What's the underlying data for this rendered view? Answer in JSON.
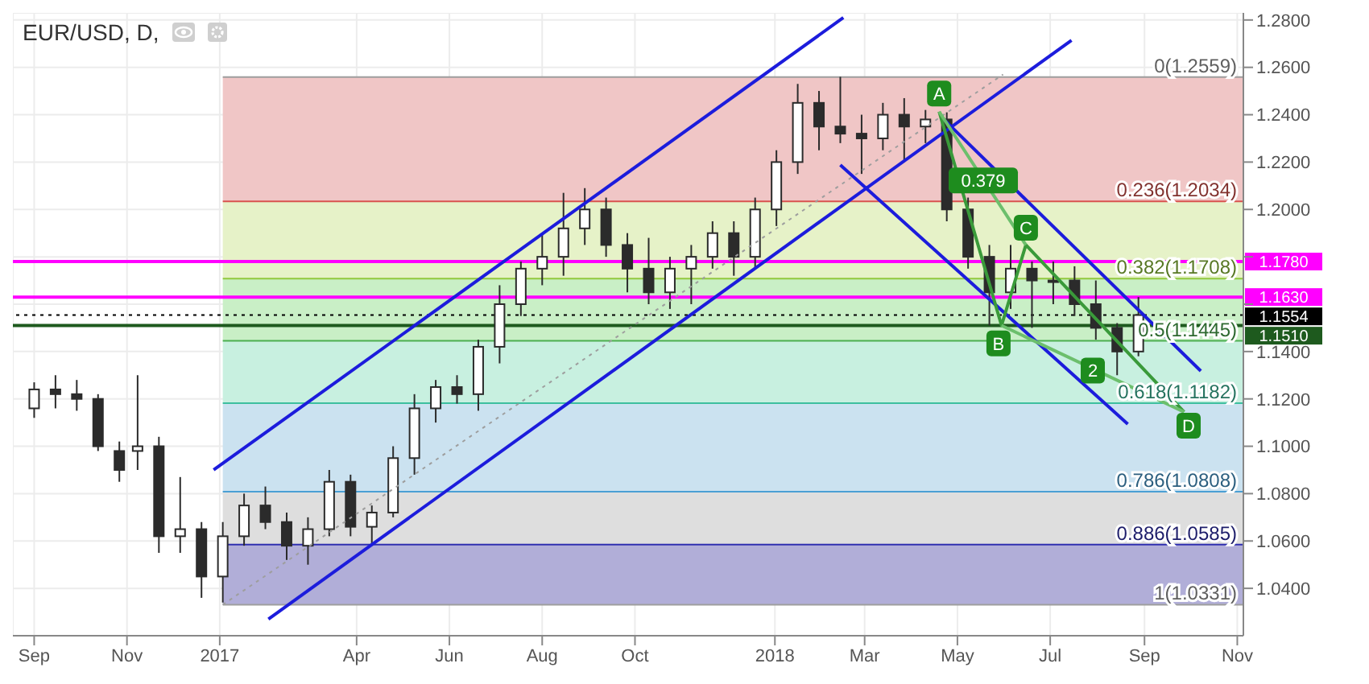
{
  "chart_data": {
    "type": "candlestick",
    "title": "EUR/USD, D,",
    "color": "#2b2b2b",
    "x": [
      "2016-09-01",
      "2016-09-15",
      "2016-09-29",
      "2016-10-13",
      "2016-10-27",
      "2016-11-08",
      "2016-11-22",
      "2016-12-06",
      "2016-12-20",
      "2017-01-03",
      "2017-01-17",
      "2017-01-31",
      "2017-02-14",
      "2017-02-28",
      "2017-03-14",
      "2017-03-28",
      "2017-04-11",
      "2017-04-25",
      "2017-05-09",
      "2017-05-23",
      "2017-06-06",
      "2017-06-20",
      "2017-07-04",
      "2017-07-18",
      "2017-08-01",
      "2017-08-15",
      "2017-08-29",
      "2017-09-12",
      "2017-09-26",
      "2017-10-10",
      "2017-10-24",
      "2017-11-07",
      "2017-11-21",
      "2017-12-05",
      "2017-12-19",
      "2018-01-02",
      "2018-01-16",
      "2018-01-30",
      "2018-02-13",
      "2018-02-27",
      "2018-03-13",
      "2018-03-27",
      "2018-04-10",
      "2018-04-24",
      "2018-05-08",
      "2018-05-22",
      "2018-06-05",
      "2018-06-19",
      "2018-07-03",
      "2018-07-17",
      "2018-07-31",
      "2018-08-14",
      "2018-08-28"
    ],
    "ohlc": [
      [
        1.116,
        1.127,
        1.112,
        1.124
      ],
      [
        1.124,
        1.13,
        1.116,
        1.122
      ],
      [
        1.122,
        1.128,
        1.115,
        1.12
      ],
      [
        1.12,
        1.122,
        1.098,
        1.1
      ],
      [
        1.098,
        1.102,
        1.085,
        1.09
      ],
      [
        1.098,
        1.13,
        1.09,
        1.1
      ],
      [
        1.1,
        1.104,
        1.055,
        1.062
      ],
      [
        1.062,
        1.087,
        1.055,
        1.065
      ],
      [
        1.065,
        1.068,
        1.036,
        1.045
      ],
      [
        1.045,
        1.068,
        1.034,
        1.062
      ],
      [
        1.062,
        1.08,
        1.058,
        1.075
      ],
      [
        1.075,
        1.083,
        1.065,
        1.068
      ],
      [
        1.068,
        1.072,
        1.052,
        1.058
      ],
      [
        1.058,
        1.07,
        1.05,
        1.065
      ],
      [
        1.065,
        1.09,
        1.062,
        1.085
      ],
      [
        1.085,
        1.088,
        1.062,
        1.066
      ],
      [
        1.066,
        1.075,
        1.058,
        1.072
      ],
      [
        1.072,
        1.1,
        1.07,
        1.095
      ],
      [
        1.095,
        1.122,
        1.088,
        1.116
      ],
      [
        1.116,
        1.128,
        1.11,
        1.125
      ],
      [
        1.125,
        1.13,
        1.118,
        1.122
      ],
      [
        1.122,
        1.145,
        1.115,
        1.142
      ],
      [
        1.142,
        1.168,
        1.135,
        1.16
      ],
      [
        1.16,
        1.178,
        1.155,
        1.175
      ],
      [
        1.175,
        1.19,
        1.168,
        1.18
      ],
      [
        1.18,
        1.207,
        1.172,
        1.192
      ],
      [
        1.192,
        1.209,
        1.185,
        1.2
      ],
      [
        1.2,
        1.205,
        1.18,
        1.185
      ],
      [
        1.185,
        1.19,
        1.165,
        1.175
      ],
      [
        1.175,
        1.188,
        1.16,
        1.165
      ],
      [
        1.165,
        1.18,
        1.158,
        1.175
      ],
      [
        1.175,
        1.185,
        1.16,
        1.18
      ],
      [
        1.18,
        1.195,
        1.175,
        1.19
      ],
      [
        1.19,
        1.195,
        1.172,
        1.18
      ],
      [
        1.18,
        1.205,
        1.175,
        1.2
      ],
      [
        1.2,
        1.225,
        1.193,
        1.22
      ],
      [
        1.22,
        1.253,
        1.215,
        1.245
      ],
      [
        1.245,
        1.25,
        1.225,
        1.235
      ],
      [
        1.235,
        1.256,
        1.228,
        1.232
      ],
      [
        1.232,
        1.24,
        1.215,
        1.23
      ],
      [
        1.23,
        1.245,
        1.225,
        1.24
      ],
      [
        1.24,
        1.247,
        1.22,
        1.235
      ],
      [
        1.235,
        1.242,
        1.228,
        1.238
      ],
      [
        1.238,
        1.241,
        1.195,
        1.2
      ],
      [
        1.2,
        1.205,
        1.175,
        1.18
      ],
      [
        1.18,
        1.185,
        1.151,
        1.165
      ],
      [
        1.165,
        1.185,
        1.158,
        1.175
      ],
      [
        1.175,
        1.178,
        1.15,
        1.17
      ],
      [
        1.17,
        1.178,
        1.16,
        1.17
      ],
      [
        1.17,
        1.176,
        1.155,
        1.16
      ],
      [
        1.16,
        1.17,
        1.145,
        1.15
      ],
      [
        1.15,
        1.152,
        1.13,
        1.14
      ],
      [
        1.14,
        1.163,
        1.138,
        1.1554
      ]
    ],
    "series": [
      {
        "type": "line",
        "color": "#1c1cdc",
        "x": [
          "2016-12-28",
          "2018-02-15"
        ],
        "values": [
          1.09,
          1.281
        ]
      },
      {
        "type": "line",
        "color": "#1c1cdc",
        "x": [
          "2017-02-02",
          "2018-07-15"
        ],
        "values": [
          1.027,
          1.2714
        ]
      },
      {
        "type": "line",
        "color": "#1c1cdc",
        "x": [
          "2018-02-13",
          "2018-08-21"
        ],
        "values": [
          1.2188,
          1.1094
        ]
      },
      {
        "type": "line",
        "color": "#1c1cdc",
        "x": [
          "2018-04-20",
          "2018-10-08"
        ],
        "values": [
          1.2393,
          1.1318
        ]
      },
      {
        "type": "line",
        "color": "#9e9e9e",
        "line_style": "dotted",
        "x": [
          "2017-01-03",
          "2018-05-31"
        ],
        "values": [
          1.0331,
          1.257
        ]
      },
      {
        "type": "line",
        "color": "#3a9a3a",
        "x": [
          "2018-04-19",
          "2018-05-30",
          "2018-06-15",
          "2018-09-27"
        ],
        "values": [
          1.2413,
          1.151,
          1.185,
          1.1145
        ]
      },
      {
        "type": "line",
        "color": "#6cbf6c",
        "x": [
          "2018-04-19",
          "2018-06-15"
        ],
        "values": [
          1.2413,
          1.185
        ]
      },
      {
        "type": "line",
        "color": "#6cbf6c",
        "x": [
          "2018-05-30",
          "2018-09-27"
        ],
        "values": [
          1.151,
          1.1145
        ]
      }
    ],
    "bands": [
      {
        "axis": "y",
        "from": 1.2034,
        "to": 1.2559,
        "color": "#f0c6c6"
      },
      {
        "axis": "y",
        "from": 1.1708,
        "to": 1.2034,
        "color": "#e6f2c8"
      },
      {
        "axis": "y",
        "from": 1.1445,
        "to": 1.1708,
        "color": "#c9efc6"
      },
      {
        "axis": "y",
        "from": 1.1182,
        "to": 1.1445,
        "color": "#c8f0e0"
      },
      {
        "axis": "y",
        "from": 1.0808,
        "to": 1.1182,
        "color": "#cbe2f0"
      },
      {
        "axis": "y",
        "from": 1.0585,
        "to": 1.0808,
        "color": "#dedede"
      },
      {
        "axis": "y",
        "from": 1.0331,
        "to": 1.0585,
        "color": "#b1aed8"
      }
    ],
    "ref_lines": [
      {
        "axis": "y",
        "value": 1.2559,
        "label": "0(1.2559)",
        "color": "#9e9e9e"
      },
      {
        "axis": "y",
        "value": 1.2034,
        "label": "0.236(1.2034)",
        "color": "#d9534f"
      },
      {
        "axis": "y",
        "value": 1.1708,
        "label": "0.382(1.1708)",
        "color": "#92c83e"
      },
      {
        "axis": "y",
        "value": 1.1445,
        "label": "0.5(1.1445)",
        "color": "#4caf50"
      },
      {
        "axis": "y",
        "value": 1.1182,
        "label": "0.618(1.1182)",
        "color": "#3dbf9f"
      },
      {
        "axis": "y",
        "value": 1.0808,
        "label": "0.786(1.0808)",
        "color": "#4a9fd4"
      },
      {
        "axis": "y",
        "value": 1.0585,
        "label": "0.886(1.0585)",
        "color": "#3030b0"
      },
      {
        "axis": "y",
        "value": 1.0331,
        "label": "1(1.0331)",
        "color": "#9e9e9e"
      },
      {
        "axis": "y",
        "value": 1.178,
        "label": "1.1780",
        "color": "#ff00ff"
      },
      {
        "axis": "y",
        "value": 1.163,
        "label": "1.1630",
        "color": "#ff00ff"
      },
      {
        "axis": "y",
        "value": 1.1554,
        "label": "1.1554",
        "color": "#000000",
        "line_style": "dotted"
      },
      {
        "axis": "y",
        "value": 1.151,
        "label": "1.1510",
        "color": "#1e5a1e"
      }
    ],
    "annotations": [
      {
        "text": "A",
        "x": "2018-04-19",
        "y": 1.2489
      },
      {
        "text": "0.379",
        "x": "2018-05-18",
        "y": 1.2122
      },
      {
        "text": "C",
        "x": "2018-06-15",
        "y": 1.1923
      },
      {
        "text": "B",
        "x": "2018-05-28",
        "y": 1.1434
      },
      {
        "text": "2",
        "x": "2018-07-29",
        "y": 1.132
      },
      {
        "text": "D",
        "x": "2018-09-30",
        "y": 1.1087
      }
    ],
    "xlim": [
      "2016-08-18",
      "2018-11-05"
    ],
    "xticks": [
      {
        "value": "2016-09-01",
        "label": "Sep"
      },
      {
        "value": "2016-11-01",
        "label": "Nov"
      },
      {
        "value": "2017-01-01",
        "label": "2017"
      },
      {
        "value": "2017-04-01",
        "label": "Apr"
      },
      {
        "value": "2017-06-01",
        "label": "Jun"
      },
      {
        "value": "2017-08-01",
        "label": "Aug"
      },
      {
        "value": "2017-10-01",
        "label": "Oct"
      },
      {
        "value": "2018-01-01",
        "label": "2018"
      },
      {
        "value": "2018-03-01",
        "label": "Mar"
      },
      {
        "value": "2018-05-01",
        "label": "May"
      },
      {
        "value": "2018-07-01",
        "label": "Jul"
      },
      {
        "value": "2018-09-01",
        "label": "Sep"
      },
      {
        "value": "2018-11-01",
        "label": "Nov"
      }
    ],
    "ylim": [
      1.02,
      1.283
    ],
    "yticks": [
      {
        "value": 1.04,
        "label": "1.0400"
      },
      {
        "value": 1.06,
        "label": "1.0600"
      },
      {
        "value": 1.08,
        "label": "1.0800"
      },
      {
        "value": 1.1,
        "label": "1.1000"
      },
      {
        "value": 1.12,
        "label": "1.1200"
      },
      {
        "value": 1.14,
        "label": "1.1400"
      },
      {
        "value": 1.16,
        "label": null
      },
      {
        "value": 1.18,
        "label": null
      },
      {
        "value": 1.2,
        "label": "1.2000"
      },
      {
        "value": 1.22,
        "label": "1.2200"
      },
      {
        "value": 1.24,
        "label": "1.2400"
      },
      {
        "value": 1.26,
        "label": "1.2600"
      },
      {
        "value": 1.28,
        "label": "1.2800"
      }
    ],
    "grid": true
  }
}
